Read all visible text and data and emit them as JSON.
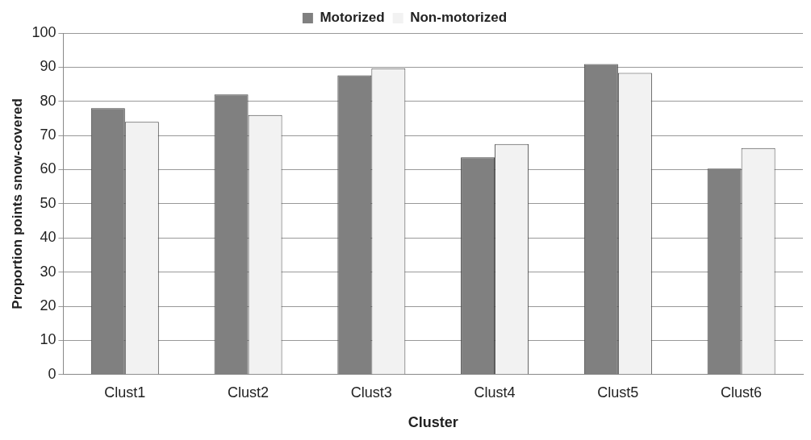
{
  "chart_data": {
    "type": "bar",
    "xlabel": "Cluster",
    "ylabel": "Proportion points snow-covered",
    "categories": [
      "Clust1",
      "Clust2",
      "Clust3",
      "Clust4",
      "Clust5",
      "Clust6"
    ],
    "series": [
      {
        "name": "Motorized",
        "color": "#808080",
        "values": [
          78,
          82,
          87.6,
          63.6,
          90.9,
          60.3
        ]
      },
      {
        "name": "Non-motorized",
        "color": "#f2f2f2",
        "values": [
          74,
          76,
          89.7,
          67.5,
          88.3,
          66.3
        ]
      }
    ],
    "ylim": [
      0,
      100
    ],
    "yticks": [
      0,
      10,
      20,
      30,
      40,
      50,
      60,
      70,
      80,
      90,
      100
    ],
    "grid": "y",
    "legend": "top"
  }
}
